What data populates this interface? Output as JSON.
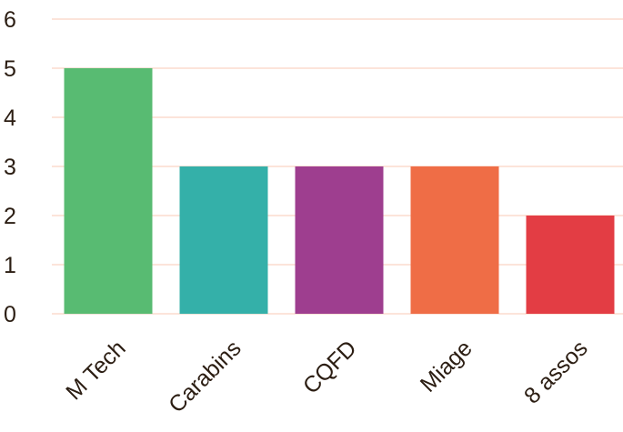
{
  "chart_data": {
    "type": "bar",
    "categories": [
      "M Tech",
      "Carabins",
      "CQFD",
      "Miage",
      "8 assos"
    ],
    "values": [
      5,
      3,
      3,
      3,
      2
    ],
    "bar_colors": [
      "#58bb72",
      "#34b0a9",
      "#9e3e8f",
      "#ef6d46",
      "#e33d44"
    ],
    "grid_color": "#fbdccd",
    "text_color": "#2b1d12",
    "ylim": [
      0,
      6
    ],
    "yticks": [
      "0",
      "1",
      "2",
      "3",
      "4",
      "5",
      "6"
    ],
    "grid": true,
    "title": "",
    "xlabel": "",
    "ylabel": ""
  }
}
